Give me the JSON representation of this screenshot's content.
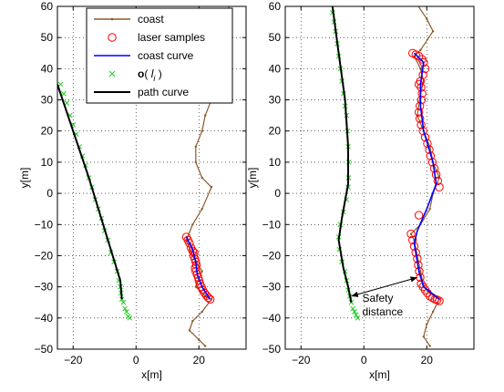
{
  "chart_data": [
    {
      "type": "line",
      "xlabel": "x[m]",
      "ylabel": "y[m]",
      "xlim": [
        -25,
        35
      ],
      "ylim": [
        -50,
        60
      ],
      "xticks": [
        -20,
        0,
        20
      ],
      "yticks": [
        -50,
        -40,
        -30,
        -20,
        -10,
        0,
        10,
        20,
        30,
        40,
        50,
        60
      ],
      "grid": true,
      "legend": {
        "placement": "top",
        "entries": [
          "coast",
          "laser samples",
          "coast curve",
          "o( l_i )",
          "path curve"
        ]
      },
      "series": [
        {
          "name": "coast",
          "color": "#8b5a2b",
          "marker": "dot",
          "points": [
            [
              30,
              62
            ],
            [
              29,
              57
            ],
            [
              27,
              50
            ],
            [
              26,
              45
            ],
            [
              25,
              40
            ],
            [
              24,
              35
            ],
            [
              24,
              30
            ],
            [
              22,
              25
            ],
            [
              21,
              20
            ],
            [
              19,
              15
            ],
            [
              19,
              10
            ],
            [
              21,
              5
            ],
            [
              24,
              2
            ],
            [
              21,
              -5
            ],
            [
              18,
              -10
            ],
            [
              16,
              -15
            ],
            [
              18,
              -20
            ],
            [
              21,
              -25
            ],
            [
              19,
              -30
            ],
            [
              22,
              -33
            ],
            [
              24,
              -34
            ],
            [
              21,
              -38
            ],
            [
              18,
              -41
            ],
            [
              17,
              -44
            ],
            [
              20,
              -47
            ],
            [
              22,
              -49
            ]
          ]
        },
        {
          "name": "laser samples",
          "color": "#ff0000",
          "marker": "circle",
          "points": [
            [
              16,
              -14
            ],
            [
              16.5,
              -15
            ],
            [
              17,
              -16
            ],
            [
              17.5,
              -17.5
            ],
            [
              18,
              -18.5
            ],
            [
              18.5,
              -19
            ],
            [
              18.3,
              -20
            ],
            [
              18.7,
              -21
            ],
            [
              19,
              -22
            ],
            [
              19.2,
              -23
            ],
            [
              18.8,
              -24
            ],
            [
              19,
              -25
            ],
            [
              19.4,
              -26
            ],
            [
              19.8,
              -27
            ],
            [
              20,
              -28
            ],
            [
              20.3,
              -29
            ],
            [
              20.8,
              -30
            ],
            [
              21.2,
              -31
            ],
            [
              21.8,
              -32
            ],
            [
              22.4,
              -32.8
            ],
            [
              23,
              -33.5
            ],
            [
              23.6,
              -34
            ]
          ]
        },
        {
          "name": "coast curve",
          "color": "#0000ff",
          "points": [
            [
              16,
              -14
            ],
            [
              18,
              -18
            ],
            [
              19,
              -22
            ],
            [
              19.5,
              -26
            ],
            [
              21,
              -30
            ],
            [
              23.5,
              -34
            ]
          ]
        },
        {
          "name": "o( l_i )",
          "color": "#22cc22",
          "marker": "x",
          "points": [
            [
              -24,
              35
            ],
            [
              -23,
              32
            ],
            [
              -22,
              29
            ],
            [
              -21,
              25
            ],
            [
              -20,
              22
            ],
            [
              -19,
              19
            ],
            [
              -18,
              15
            ],
            [
              -17,
              12
            ],
            [
              -16,
              9
            ],
            [
              -15,
              5
            ],
            [
              -14,
              2
            ],
            [
              -13,
              -2
            ],
            [
              -12,
              -5
            ],
            [
              -11,
              -8
            ],
            [
              -10,
              -12
            ],
            [
              -9,
              -15
            ],
            [
              -8,
              -19
            ],
            [
              -7,
              -22
            ],
            [
              -6,
              -25
            ],
            [
              -5.5,
              -28
            ],
            [
              -5,
              -30
            ],
            [
              -4.8,
              -32
            ],
            [
              -4.5,
              -34
            ],
            [
              -4,
              -35
            ],
            [
              -3.5,
              -37
            ],
            [
              -3,
              -38
            ],
            [
              -2.5,
              -39.5
            ],
            [
              -2,
              -40
            ]
          ]
        },
        {
          "name": "path curve",
          "color": "#000000",
          "points": [
            [
              -25,
              35
            ],
            [
              -15,
              5
            ],
            [
              -5,
              -28
            ],
            [
              -4.5,
              -34
            ]
          ]
        }
      ]
    },
    {
      "type": "line",
      "xlabel": "x[m]",
      "ylabel": "y[m]",
      "xlim": [
        -25,
        35
      ],
      "ylim": [
        -50,
        60
      ],
      "xticks": [
        -20,
        0,
        20
      ],
      "yticks": [
        -50,
        -40,
        -30,
        -20,
        -10,
        0,
        10,
        20,
        30,
        40,
        50,
        60
      ],
      "grid": true,
      "annotation": {
        "text": "Safety distance",
        "lines": [
          "Safety",
          "distance"
        ],
        "arrow": {
          "from": [
            -4,
            -33
          ],
          "to": [
            17,
            -27
          ]
        }
      },
      "series": [
        {
          "name": "coast",
          "color": "#8b5a2b",
          "marker": "dot",
          "points": [
            [
              16,
              62
            ],
            [
              20,
              56
            ],
            [
              22,
              52
            ],
            [
              18,
              46
            ],
            [
              16,
              44
            ],
            [
              18,
              40
            ],
            [
              19,
              36
            ],
            [
              18,
              32
            ],
            [
              17,
              25
            ],
            [
              19,
              20
            ],
            [
              21,
              15
            ],
            [
              22,
              10
            ],
            [
              24,
              5
            ],
            [
              22,
              0
            ],
            [
              21,
              -5
            ],
            [
              18,
              -10
            ],
            [
              15,
              -13
            ],
            [
              16,
              -15
            ],
            [
              17,
              -20
            ],
            [
              18,
              -25
            ],
            [
              19,
              -30
            ],
            [
              21,
              -32
            ],
            [
              24,
              -34
            ],
            [
              22,
              -38
            ],
            [
              20,
              -42
            ],
            [
              19,
              -46
            ],
            [
              21,
              -49
            ]
          ]
        },
        {
          "name": "laser samples",
          "color": "#ff0000",
          "marker": "circle",
          "points": [
            [
              15.5,
              45
            ],
            [
              16.5,
              44.5
            ],
            [
              17.5,
              44
            ],
            [
              18.5,
              43
            ],
            [
              19,
              42
            ],
            [
              19.5,
              40
            ],
            [
              18.8,
              38
            ],
            [
              18,
              36
            ],
            [
              17.5,
              35
            ],
            [
              18.2,
              34
            ],
            [
              18.5,
              32
            ],
            [
              18.3,
              30
            ],
            [
              17.8,
              28
            ],
            [
              17.5,
              26
            ],
            [
              17.8,
              24
            ],
            [
              18.2,
              22
            ],
            [
              18.8,
              20
            ],
            [
              19.5,
              18
            ],
            [
              20.2,
              16
            ],
            [
              20.8,
              14
            ],
            [
              21.2,
              12
            ],
            [
              21.8,
              10
            ],
            [
              22.4,
              8
            ],
            [
              23,
              6
            ],
            [
              23.5,
              4
            ],
            [
              24,
              2
            ],
            [
              17.5,
              -7
            ],
            [
              15,
              -13
            ],
            [
              15.5,
              -15
            ],
            [
              16,
              -17
            ],
            [
              16.5,
              -19
            ],
            [
              17,
              -21
            ],
            [
              17.3,
              -23
            ],
            [
              17.6,
              -25
            ],
            [
              17.9,
              -27
            ],
            [
              18.2,
              -29
            ],
            [
              18.8,
              -30
            ],
            [
              19.5,
              -31
            ],
            [
              20.2,
              -32
            ],
            [
              21,
              -33
            ],
            [
              21.8,
              -33.5
            ],
            [
              22.6,
              -34
            ],
            [
              23.3,
              -34.2
            ],
            [
              24,
              -34.5
            ]
          ]
        },
        {
          "name": "coast curve",
          "color": "#0000ff",
          "points": [
            [
              16,
              45
            ],
            [
              19,
              42
            ],
            [
              18,
              35
            ],
            [
              18,
              28
            ],
            [
              19,
              20
            ],
            [
              22,
              10
            ],
            [
              23,
              3
            ],
            [
              20,
              -5
            ],
            [
              17,
              -12
            ],
            [
              16,
              -16
            ],
            [
              17.5,
              -25
            ],
            [
              19,
              -30
            ],
            [
              24,
              -34
            ]
          ]
        },
        {
          "name": "o( l_i )",
          "color": "#22cc22",
          "marker": "x",
          "points": [
            [
              -10,
              58
            ],
            [
              -9.5,
              55
            ],
            [
              -9,
              52
            ],
            [
              -8.5,
              48
            ],
            [
              -8,
              44
            ],
            [
              -7.5,
              40
            ],
            [
              -7,
              36
            ],
            [
              -6.5,
              32
            ],
            [
              -6,
              28
            ],
            [
              -5.5,
              25
            ],
            [
              -5.2,
              20
            ],
            [
              -5,
              15
            ],
            [
              -4.8,
              10
            ],
            [
              -4.9,
              5
            ],
            [
              -5,
              2
            ],
            [
              -5.5,
              -2
            ],
            [
              -6.5,
              -6
            ],
            [
              -7.5,
              -10
            ],
            [
              -8,
              -14
            ],
            [
              -7.8,
              -18
            ],
            [
              -7,
              -22
            ],
            [
              -6,
              -25
            ],
            [
              -5.5,
              -28
            ],
            [
              -5,
              -31
            ],
            [
              -4.5,
              -33
            ],
            [
              -4,
              -35
            ],
            [
              -3.5,
              -37
            ],
            [
              -3,
              -38
            ],
            [
              -2.5,
              -39
            ],
            [
              -2,
              -40
            ]
          ]
        },
        {
          "name": "path curve",
          "color": "#000000",
          "points": [
            [
              -10,
              60
            ],
            [
              -8,
              45
            ],
            [
              -6,
              30
            ],
            [
              -5,
              15
            ],
            [
              -5,
              3
            ],
            [
              -7,
              -8
            ],
            [
              -8,
              -15
            ],
            [
              -6.5,
              -24
            ],
            [
              -5,
              -30
            ],
            [
              -4,
              -35
            ]
          ]
        }
      ]
    }
  ]
}
